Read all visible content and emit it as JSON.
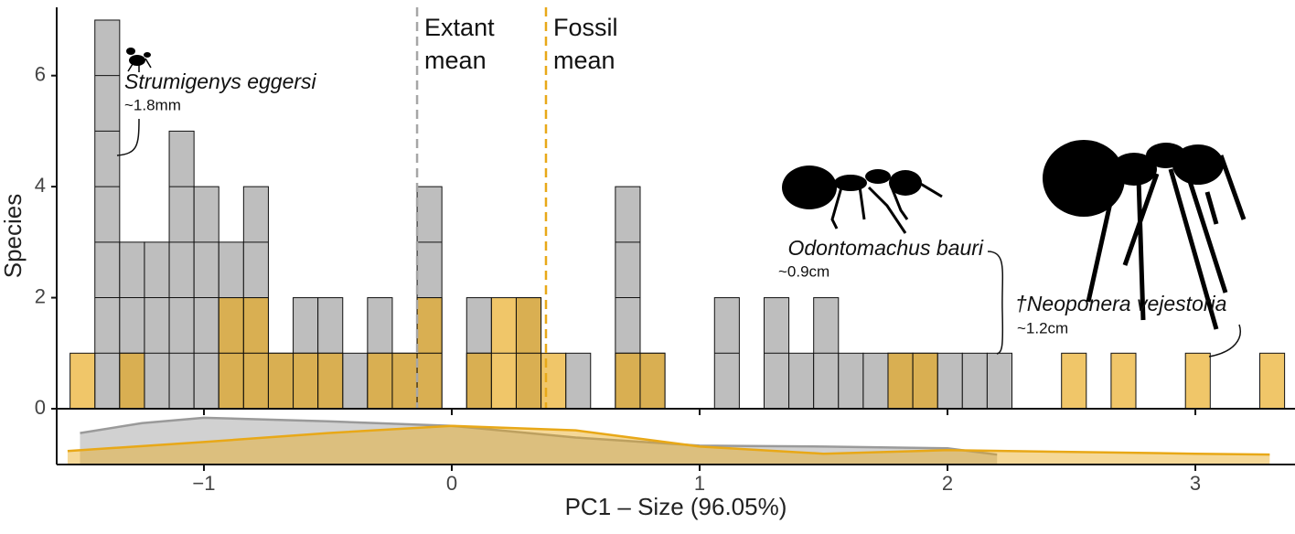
{
  "chart_data": {
    "type": "histogram",
    "xlabel": "PC1 – Size  (96.05%)",
    "ylabel": "Species",
    "bins": [
      -1.54,
      -1.44,
      -1.34,
      -1.24,
      -1.14,
      -1.04,
      -0.94,
      -0.84,
      -0.74,
      -0.64,
      -0.54,
      -0.44,
      -0.34,
      -0.24,
      -0.14,
      -0.04,
      0.06,
      0.16,
      0.26,
      0.36,
      0.46,
      0.56,
      0.66,
      0.76,
      0.86,
      0.96,
      1.06,
      1.16,
      1.26,
      1.36,
      1.46,
      1.56,
      1.66,
      1.76,
      1.86,
      1.96,
      2.06,
      2.16,
      2.26,
      2.36,
      2.46,
      2.56,
      2.66,
      2.76,
      2.86,
      2.96,
      3.06,
      3.16,
      3.26,
      3.36
    ],
    "series": [
      {
        "color": "#bebebe",
        "values": [
          0,
          7,
          3,
          3,
          5,
          4,
          3,
          4,
          1,
          2,
          2,
          1,
          2,
          1,
          4,
          0,
          2,
          0,
          2,
          0,
          1,
          0,
          4,
          1,
          0,
          0,
          2,
          0,
          2,
          1,
          2,
          1,
          1,
          1,
          1,
          1,
          1,
          1,
          0,
          0,
          0,
          0,
          0,
          0,
          0,
          0,
          0,
          0,
          0
        ]
      },
      {
        "color": "#e8a818",
        "values": [
          1,
          0,
          1,
          0,
          0,
          0,
          2,
          2,
          1,
          1,
          1,
          0,
          1,
          1,
          2,
          0,
          1,
          2,
          2,
          1,
          0,
          0,
          1,
          1,
          0,
          0,
          0,
          0,
          0,
          0,
          0,
          0,
          0,
          1,
          1,
          0,
          0,
          0,
          0,
          0,
          1,
          0,
          1,
          0,
          0,
          1,
          0,
          0,
          1
        ]
      }
    ],
    "density": [
      {
        "color": "#9a9a9a",
        "x": [
          -1.5,
          -1.25,
          -1,
          -0.5,
          0,
          0.5,
          1,
          1.5,
          2,
          2.2
        ],
        "values": [
          0.35,
          0.46,
          0.52,
          0.48,
          0.43,
          0.3,
          0.21,
          0.2,
          0.18,
          0.11
        ]
      },
      {
        "color": "#e8a818",
        "x": [
          -1.55,
          -1,
          -0.5,
          0,
          0.5,
          1,
          1.5,
          2,
          2.5,
          3,
          3.3
        ],
        "values": [
          0.15,
          0.25,
          0.35,
          0.43,
          0.38,
          0.2,
          0.12,
          0.16,
          0.14,
          0.12,
          0.11
        ]
      }
    ],
    "density_ylim": [
      0,
      0.6
    ],
    "xlim": [
      -1.594,
      3.402
    ],
    "ylim": [
      0,
      7.23
    ],
    "xticks": [
      {
        "value": -1,
        "label": "−1"
      },
      0,
      1,
      2,
      3
    ],
    "yticks": [
      0,
      2,
      4,
      6
    ],
    "mean_lines": [
      {
        "x": -0.14,
        "color": "#a6a6a6",
        "lines": [
          "Extant",
          "mean"
        ]
      },
      {
        "x": 0.38,
        "color": "#e8a818",
        "lines": [
          "Fossil",
          "mean"
        ]
      }
    ],
    "specimens": [
      {
        "name": "Strumigenys eggersi",
        "size": "~1.8mm"
      },
      {
        "name": "Odontomachus bauri",
        "size": "~0.9cm"
      },
      {
        "name": "†Neoponera vejestoria",
        "size": "~1.2cm"
      }
    ]
  }
}
